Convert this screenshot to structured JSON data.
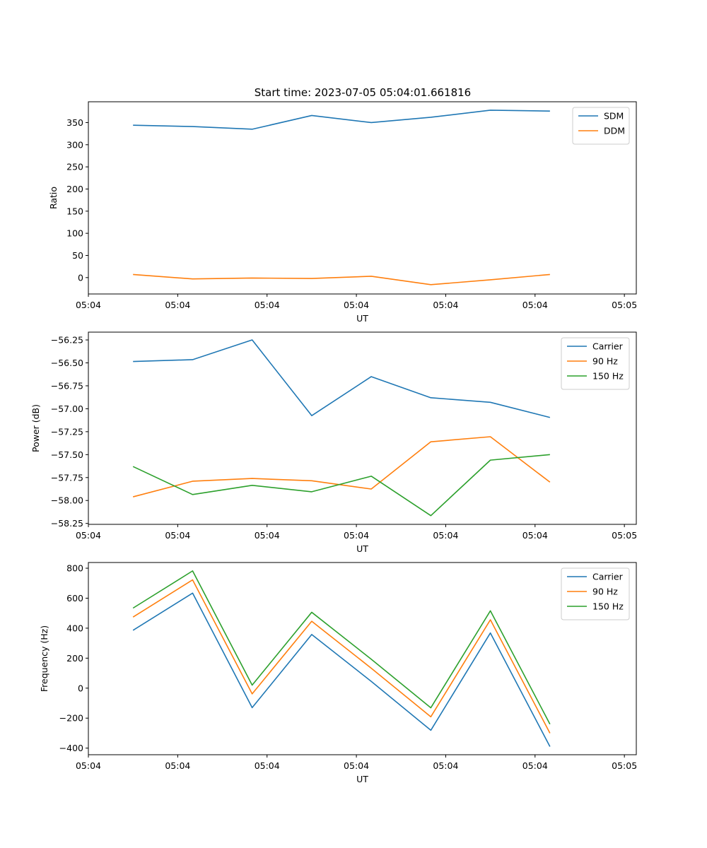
{
  "chart_data": [
    {
      "type": "line",
      "title": "Start time: 2023-07-05 05:04:01.661816",
      "xlabel": "UT",
      "ylabel": "Ratio",
      "x": [
        0,
        1,
        2,
        3,
        4,
        5,
        6,
        7
      ],
      "xlim": [
        -0.75,
        8.45
      ],
      "x_ticks": [
        -0.75,
        0.75,
        2.25,
        3.75,
        5.25,
        6.75,
        8.25
      ],
      "x_tick_labels": [
        "05:04",
        "05:04",
        "05:04",
        "05:04",
        "05:04",
        "05:04",
        "05:05"
      ],
      "ylim": [
        -37,
        397
      ],
      "y_ticks": [
        0,
        50,
        100,
        150,
        200,
        250,
        300,
        350
      ],
      "y_tick_labels": [
        "0",
        "50",
        "100",
        "150",
        "200",
        "250",
        "300",
        "350"
      ],
      "legend_position": "top-right",
      "series": [
        {
          "name": "SDM",
          "color": "#1f77b4",
          "values": [
            344,
            341,
            335,
            366,
            350,
            362,
            378,
            376
          ]
        },
        {
          "name": "DDM",
          "color": "#ff7f0e",
          "values": [
            7,
            -3,
            -1,
            -2,
            3,
            -16,
            -5,
            7
          ]
        }
      ]
    },
    {
      "type": "line",
      "title": "",
      "xlabel": "UT",
      "ylabel": "Power (dB)",
      "x": [
        0,
        1,
        2,
        3,
        4,
        5,
        6,
        7
      ],
      "xlim": [
        -0.75,
        8.45
      ],
      "x_ticks": [
        -0.75,
        0.75,
        2.25,
        3.75,
        5.25,
        6.75,
        8.25
      ],
      "x_tick_labels": [
        "05:04",
        "05:04",
        "05:04",
        "05:04",
        "05:04",
        "05:04",
        "05:05"
      ],
      "ylim": [
        -58.26,
        -56.165
      ],
      "y_ticks": [
        -58.25,
        -58.0,
        -57.75,
        -57.5,
        -57.25,
        -57.0,
        -56.75,
        -56.5,
        -56.25
      ],
      "y_tick_labels": [
        "−58.25",
        "−58.00",
        "−57.75",
        "−57.50",
        "−57.25",
        "−57.00",
        "−56.75",
        "−56.50",
        "−56.25"
      ],
      "legend_position": "top-right",
      "series": [
        {
          "name": "Carrier",
          "color": "#1f77b4",
          "values": [
            -56.485,
            -56.465,
            -56.25,
            -57.075,
            -56.65,
            -56.88,
            -56.93,
            -57.095
          ]
        },
        {
          "name": "90 Hz",
          "color": "#ff7f0e",
          "values": [
            -57.96,
            -57.79,
            -57.76,
            -57.785,
            -57.875,
            -57.36,
            -57.305,
            -57.8
          ]
        },
        {
          "name": "150 Hz",
          "color": "#2ca02c",
          "values": [
            -57.63,
            -57.935,
            -57.835,
            -57.905,
            -57.735,
            -58.165,
            -57.56,
            -57.5
          ]
        }
      ]
    },
    {
      "type": "line",
      "title": "",
      "xlabel": "UT",
      "ylabel": "Frequency (Hz)",
      "x": [
        0,
        1,
        2,
        3,
        4,
        5,
        6,
        7
      ],
      "xlim": [
        -0.75,
        8.45
      ],
      "x_ticks": [
        -0.75,
        0.75,
        2.25,
        3.75,
        5.25,
        6.75,
        8.25
      ],
      "x_tick_labels": [
        "05:04",
        "05:04",
        "05:04",
        "05:04",
        "05:04",
        "05:04",
        "05:05"
      ],
      "ylim": [
        -444,
        838
      ],
      "y_ticks": [
        -400,
        -200,
        0,
        200,
        400,
        600,
        800
      ],
      "y_tick_labels": [
        "−400",
        "−200",
        "0",
        "200",
        "400",
        "600",
        "800"
      ],
      "legend_position": "top-right",
      "series": [
        {
          "name": "Carrier",
          "color": "#1f77b4",
          "values": [
            386,
            634,
            -130,
            358,
            45,
            -281,
            368,
            -390
          ]
        },
        {
          "name": "90 Hz",
          "color": "#ff7f0e",
          "values": [
            474,
            722,
            -38,
            446,
            133,
            -191,
            456,
            -300
          ]
        },
        {
          "name": "150 Hz",
          "color": "#2ca02c",
          "values": [
            534,
            782,
            20,
            506,
            193,
            -131,
            516,
            -240
          ]
        }
      ]
    }
  ]
}
